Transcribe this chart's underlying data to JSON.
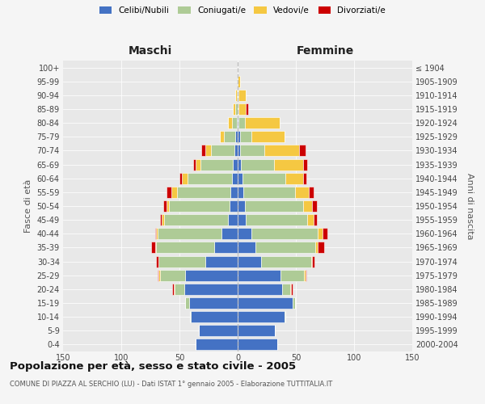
{
  "age_groups": [
    "0-4",
    "5-9",
    "10-14",
    "15-19",
    "20-24",
    "25-29",
    "30-34",
    "35-39",
    "40-44",
    "45-49",
    "50-54",
    "55-59",
    "60-64",
    "65-69",
    "70-74",
    "75-79",
    "80-84",
    "85-89",
    "90-94",
    "95-99",
    "100+"
  ],
  "birth_years": [
    "2000-2004",
    "1995-1999",
    "1990-1994",
    "1985-1989",
    "1980-1984",
    "1975-1979",
    "1970-1974",
    "1965-1969",
    "1960-1964",
    "1955-1959",
    "1950-1954",
    "1945-1949",
    "1940-1944",
    "1935-1939",
    "1930-1934",
    "1925-1929",
    "1920-1924",
    "1915-1919",
    "1910-1914",
    "1905-1909",
    "≤ 1904"
  ],
  "maschi": {
    "celibi": [
      36,
      33,
      40,
      42,
      46,
      45,
      28,
      20,
      14,
      8,
      7,
      6,
      5,
      4,
      3,
      2,
      1,
      0,
      0,
      0,
      0
    ],
    "coniugati": [
      0,
      0,
      1,
      3,
      8,
      22,
      40,
      50,
      55,
      55,
      52,
      46,
      38,
      28,
      20,
      10,
      4,
      2,
      1,
      0,
      0
    ],
    "vedovi": [
      0,
      0,
      0,
      0,
      1,
      1,
      0,
      1,
      1,
      2,
      2,
      5,
      5,
      4,
      5,
      3,
      3,
      2,
      1,
      0,
      0
    ],
    "divorziati": [
      0,
      0,
      0,
      0,
      1,
      1,
      2,
      3,
      1,
      2,
      3,
      4,
      2,
      2,
      3,
      0,
      0,
      0,
      0,
      0,
      0
    ]
  },
  "femmine": {
    "nubili": [
      34,
      32,
      40,
      47,
      38,
      37,
      20,
      15,
      12,
      7,
      6,
      5,
      4,
      3,
      2,
      2,
      1,
      0,
      0,
      0,
      0
    ],
    "coniugate": [
      0,
      0,
      1,
      2,
      7,
      20,
      43,
      52,
      57,
      53,
      50,
      44,
      37,
      28,
      21,
      10,
      5,
      1,
      1,
      0,
      0
    ],
    "vedove": [
      0,
      0,
      0,
      0,
      1,
      1,
      1,
      2,
      4,
      5,
      8,
      12,
      15,
      25,
      30,
      28,
      30,
      6,
      6,
      2,
      0
    ],
    "divorziate": [
      0,
      0,
      0,
      0,
      1,
      1,
      2,
      5,
      4,
      3,
      4,
      4,
      3,
      4,
      5,
      0,
      0,
      2,
      0,
      0,
      0
    ]
  },
  "colors": {
    "celibi_nubili": "#4472C4",
    "coniugati": "#AECB96",
    "vedovi": "#F5C842",
    "divorziati": "#CC0000"
  },
  "xlim": 150,
  "title": "Popolazione per età, sesso e stato civile - 2005",
  "subtitle": "COMUNE DI PIAZZA AL SERCHIO (LU) - Dati ISTAT 1° gennaio 2005 - Elaborazione TUTTITALIA.IT",
  "xlabel_left": "Maschi",
  "xlabel_right": "Femmine",
  "ylabel_left": "Fasce di età",
  "ylabel_right": "Anni di nascita",
  "bg_color": "#f5f5f5",
  "plot_bg_color": "#e8e8e8",
  "grid_color": "#ffffff"
}
